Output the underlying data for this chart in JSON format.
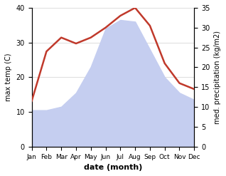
{
  "months": [
    "Jan",
    "Feb",
    "Mar",
    "Apr",
    "May",
    "Jun",
    "Jul",
    "Aug",
    "Sep",
    "Oct",
    "Nov",
    "Dec"
  ],
  "temp": [
    10.5,
    10.5,
    11.5,
    15.5,
    23.0,
    34.0,
    36.5,
    36.0,
    28.0,
    20.0,
    15.5,
    13.5
  ],
  "precip": [
    11.5,
    24.0,
    27.5,
    26.0,
    27.5,
    30.0,
    33.0,
    35.0,
    30.5,
    21.0,
    16.0,
    14.5
  ],
  "temp_fill_color": "#c5cef0",
  "precip_line_color": "#c0392b",
  "temp_ylim": [
    0,
    40
  ],
  "precip_ylim": [
    0,
    35
  ],
  "xlabel": "date (month)",
  "ylabel_left": "max temp (C)",
  "ylabel_right": "med. precipitation (kg/m2)",
  "background_color": "#ffffff",
  "grid_color": "#d0d0d0"
}
